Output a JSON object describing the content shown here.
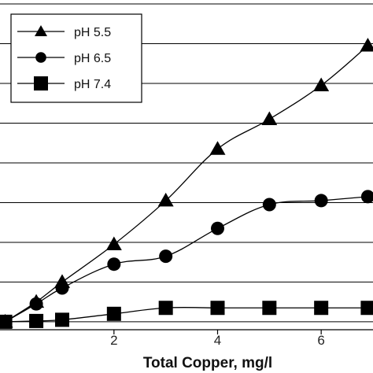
{
  "chart_data": {
    "type": "line",
    "xlabel": "Total Copper, mg/l",
    "ylabel": "",
    "xlim": [
      -0.2,
      7.0
    ],
    "ylim": [
      -0.2,
      8.1
    ],
    "x_ticks": [
      2,
      4,
      6
    ],
    "y_gridlines": [
      0,
      1,
      2,
      3,
      4,
      5,
      6,
      7,
      8
    ],
    "grid": "horizontal",
    "legend_position": "top-left",
    "series": [
      {
        "name": "pH 5.5",
        "marker": "triangle",
        "color": "#000000",
        "points": [
          [
            -0.1,
            0.0
          ],
          [
            0.5,
            0.5
          ],
          [
            1.0,
            1.0
          ],
          [
            2.0,
            1.95
          ],
          [
            3.0,
            3.05
          ],
          [
            4.0,
            4.35
          ],
          [
            5.0,
            5.1
          ],
          [
            6.0,
            5.95
          ],
          [
            6.9,
            6.95
          ]
        ]
      },
      {
        "name": "pH 6.5",
        "marker": "circle",
        "color": "#000000",
        "points": [
          [
            -0.1,
            0.0
          ],
          [
            0.5,
            0.45
          ],
          [
            1.0,
            0.85
          ],
          [
            2.0,
            1.45
          ],
          [
            3.0,
            1.65
          ],
          [
            4.0,
            2.35
          ],
          [
            5.0,
            2.95
          ],
          [
            6.0,
            3.05
          ],
          [
            6.9,
            3.15
          ]
        ]
      },
      {
        "name": "pH 7.4",
        "marker": "square",
        "color": "#000000",
        "points": [
          [
            -0.1,
            0.0
          ],
          [
            0.5,
            0.02
          ],
          [
            1.0,
            0.05
          ],
          [
            2.0,
            0.2
          ],
          [
            3.0,
            0.35
          ],
          [
            4.0,
            0.35
          ],
          [
            5.0,
            0.35
          ],
          [
            6.0,
            0.35
          ],
          [
            6.9,
            0.35
          ]
        ]
      }
    ]
  }
}
